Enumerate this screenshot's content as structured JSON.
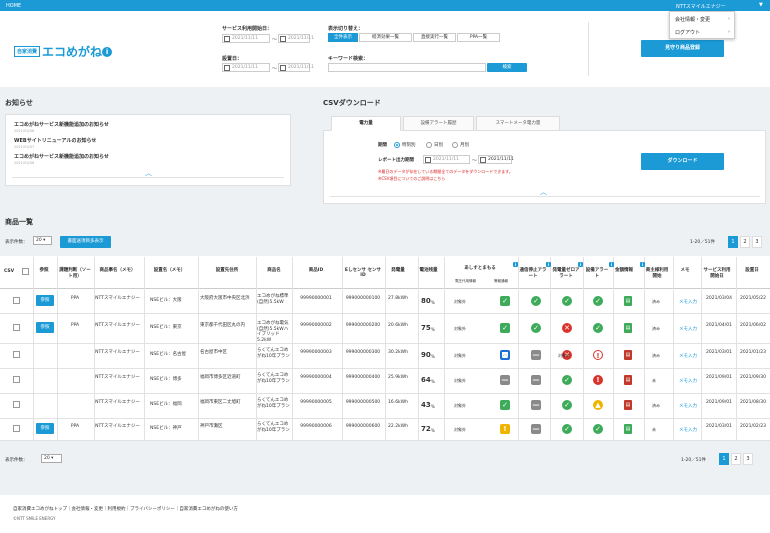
{
  "topbar": {
    "home": "HOME",
    "company": "NTTスマイルエナジー",
    "caret": "▼"
  },
  "menu": {
    "items": [
      "会社情報・変更",
      "ログアウト"
    ],
    "arrow": "›"
  },
  "logo": {
    "box": "自家消費",
    "name": "エコめがね",
    "info": "i"
  },
  "filters": {
    "start_label": "サービス利用開始日：",
    "install_label": "設置日：",
    "date_from": "2021/11/11",
    "date_to": "2021/11/11",
    "tilde": "〜",
    "display_label": "表示切り替え：",
    "display_options": [
      "全件表示",
      "経済効果一覧",
      "直接実行一覧",
      "PPA一覧"
    ],
    "keyword_label": "キーワード検索：",
    "search_btn": "検索",
    "estimate_btn": "見守り商品登録"
  },
  "news": {
    "title": "お知らせ",
    "items": [
      {
        "text": "エコめがねサービス新機能追加のお知らせ",
        "date": "2021/03/08"
      },
      {
        "text": "WEBサイトリニューアルのお知らせ",
        "date": "2021/03/07"
      },
      {
        "text": "エコめがねサービス新機能追加のお知らせ",
        "date": "2021/03/06"
      }
    ],
    "toggle": "︿"
  },
  "csv": {
    "title": "CSVダウンロード",
    "tabs": [
      "電力量",
      "設備アラート履歴",
      "スマートメータ電力量"
    ],
    "period_label": "期間",
    "period_opts": [
      "時刻別",
      "日別",
      "月別"
    ],
    "range_label": "レポート出力期間",
    "note1": "※最日のデータが存在している期間全てのデータをダウンロードできます。",
    "note2": "※CSV項目についてのご説明はこちら",
    "download_btn": "ダウンロード",
    "toggle": "︿"
  },
  "list": {
    "title": "商品一覧",
    "perpage_label": "表示件数：",
    "perpage": "20",
    "bulk_btn": "書面送項目多表示",
    "range_top": "1-20／51件",
    "range_bottom": "1-20／51件",
    "pages": [
      "1",
      "2",
      "3"
    ]
  },
  "columns": [
    "CSV",
    "参照",
    "課題判断（ソート用）",
    "商品事名（メモ）",
    "設置名（メモ）",
    "設置先住所",
    "商品名",
    "商品ID",
    "Eしセンサ センサID",
    "発電量",
    "電池残量",
    "あしすとまもる",
    "通信停止アラート",
    "発電量ゼロアラート",
    "設備アラート",
    "金額情報",
    "商主様利用開始",
    "メモ",
    "サービス利用開始日",
    "設置日"
  ],
  "sub_columns": [
    "電圧代用情報",
    "警報通報"
  ],
  "rows": [
    {
      "ref": "参照",
      "type": "PPA",
      "maker": "NTTスマイルエナジー",
      "site": "NSEビル：大阪",
      "addr": "大阪府大阪市中央区北浜",
      "product": "エコめがね標準(自然)5.5kW",
      "pid": "99990000001",
      "eid": "999000000100",
      "gen": "27.8kWh",
      "bat": "80",
      "asst": "対象外",
      "memo": "メモ入力",
      "owner": "済み",
      "svc": "2021/03/04",
      "inst": "2021/05/22",
      "status": [
        "check",
        "check",
        "check",
        "check"
      ],
      "doc": "green"
    },
    {
      "ref": "参照",
      "type": "PPA",
      "maker": "NTTスマイルエナジー",
      "site": "NSEビル：東京",
      "addr": "東京都千代田区丸の内",
      "product": "エコめがね電気(自然)5.5kWハイブリッド5.2kW",
      "pid": "99990000002",
      "eid": "999000000200",
      "gen": "20.6kWh",
      "bat": "75",
      "asst": "対象外",
      "memo": "メモ入力",
      "owner": "済み",
      "svc": "2021/04/01",
      "inst": "2021/06/02",
      "status": [
        "check",
        "check",
        "x",
        "check"
      ],
      "doc": "green"
    },
    {
      "ref": "",
      "type": "",
      "maker": "NTTスマイルエナジー",
      "site": "NSEビル：名古屋",
      "addr": "名古屋市中区",
      "product": "らくてんエコめがね10年プラン",
      "pid": "99990000003",
      "eid": "999000000300",
      "gen": "30.2kWh",
      "bat": "90",
      "asst": "対象外",
      "memo": "メモ入力",
      "owner": "済み",
      "svc": "2021/03/01",
      "inst": "2021/01/23",
      "status": [
        "blue",
        "minus",
        "x",
        "target"
      ],
      "doc": "red"
    },
    {
      "ref": "",
      "type": "",
      "maker": "NTTスマイルエナジー",
      "site": "NSEビル：博多",
      "addr": "福岡市博多区近道町",
      "product": "らくてんエコめがね10年プラン",
      "pid": "99990000004",
      "eid": "999000000400",
      "gen": "25.9kWh",
      "bat": "64",
      "asst": "対象外",
      "memo": "メモ入力",
      "owner": "未",
      "svc": "2021/09/01",
      "inst": "2021/09/30",
      "status": [
        "minus",
        "minus",
        "check",
        "alert"
      ],
      "doc": "red"
    },
    {
      "ref": "",
      "type": "",
      "maker": "NTTスマイルエナジー",
      "site": "NSEビル：福岡",
      "addr": "福岡市東区二丈旭町",
      "product": "らくてんエコめがね10年プラン",
      "pid": "99990000005",
      "eid": "999000000500",
      "gen": "16.6kWh",
      "bat": "43",
      "asst": "対象外",
      "memo": "メモ入力",
      "owner": "済み",
      "svc": "2021/09/01",
      "inst": "2021/08/30",
      "status": [
        "check",
        "minus",
        "check",
        "warn"
      ],
      "doc": "red"
    },
    {
      "ref": "参照",
      "type": "PPA",
      "maker": "NTTスマイルエナジー",
      "site": "NSEビル：神戸",
      "addr": "神戸市灘区",
      "product": "らくてんエコめがね10年プラン",
      "pid": "99990000006",
      "eid": "999000000600",
      "gen": "22.2kWh",
      "bat": "72",
      "asst": "対象外",
      "memo": "メモ入力",
      "owner": "未",
      "svc": "2021/03/01",
      "inst": "2021/02/23",
      "status": [
        "yellow",
        "minus",
        "check",
        "check"
      ],
      "doc": "green"
    }
  ],
  "footer": {
    "links": "自家消費エコめがねトップ｜会社情報・変更｜利用規約｜プライバシーポリシー｜自家消費エコめがねの使い方",
    "copy": "©NTT SMILE ENERGY"
  },
  "colors": {
    "accent": "#1b9ad6",
    "ok": "#3dab5a",
    "ng": "#d9342b",
    "warn": "#f0b400"
  }
}
